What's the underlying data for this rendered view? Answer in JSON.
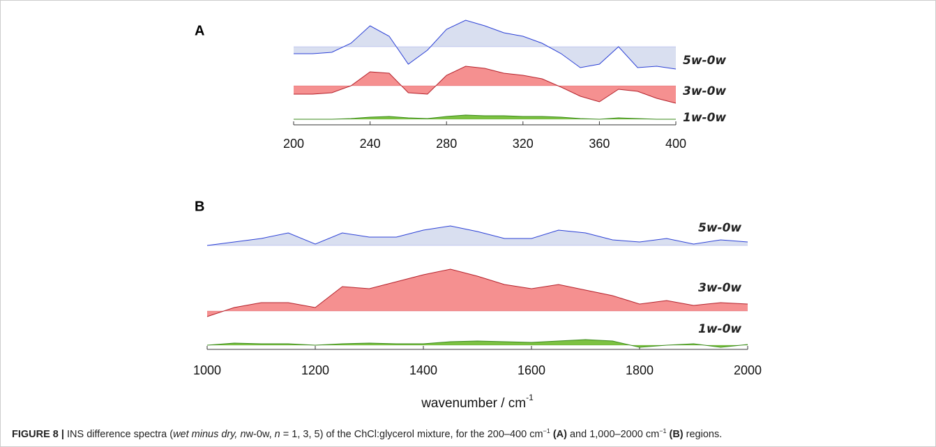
{
  "chart_data": [
    {
      "type": "area",
      "panel_label": "A",
      "x": [
        200,
        210,
        220,
        230,
        240,
        250,
        260,
        270,
        280,
        290,
        300,
        310,
        320,
        330,
        340,
        350,
        360,
        370,
        380,
        390,
        400
      ],
      "xlim": [
        200,
        400
      ],
      "xticks": [
        200,
        240,
        280,
        320,
        360,
        400
      ],
      "series": [
        {
          "name": "5w-0w",
          "color": "#d9dff0",
          "line_color": "#2a3fd6",
          "values": [
            -10,
            -10,
            -8,
            5,
            30,
            15,
            -25,
            -5,
            25,
            38,
            30,
            20,
            15,
            5,
            -10,
            -30,
            -25,
            0,
            -30,
            -28,
            -32
          ]
        },
        {
          "name": "3w-0w",
          "color": "#f59090",
          "line_color": "#b3202a",
          "values": [
            -12,
            -12,
            -10,
            0,
            20,
            18,
            -10,
            -12,
            15,
            28,
            25,
            18,
            15,
            10,
            -2,
            -15,
            -23,
            -5,
            -8,
            -18,
            -25
          ]
        },
        {
          "name": "1w-0w",
          "color": "#7dc242",
          "line_color": "#3a8a1a",
          "values": [
            0,
            0,
            0,
            1,
            3,
            4,
            2,
            1,
            4,
            6,
            5,
            5,
            4,
            4,
            3,
            1,
            0,
            2,
            1,
            0,
            0
          ]
        }
      ]
    },
    {
      "type": "area",
      "panel_label": "B",
      "x": [
        1000,
        1050,
        1100,
        1150,
        1200,
        1250,
        1300,
        1350,
        1400,
        1450,
        1500,
        1550,
        1600,
        1650,
        1700,
        1750,
        1800,
        1850,
        1900,
        1950,
        2000
      ],
      "xlim": [
        1000,
        2000
      ],
      "xticks": [
        1000,
        1200,
        1400,
        1600,
        1800,
        2000
      ],
      "xlabel": "wavenumber / cm",
      "xlabel_sup": "-1",
      "series": [
        {
          "name": "5w-0w",
          "color": "#d9dff0",
          "line_color": "#2a3fd6",
          "values": [
            0,
            5,
            10,
            18,
            2,
            18,
            12,
            12,
            22,
            28,
            20,
            10,
            10,
            22,
            18,
            8,
            5,
            10,
            2,
            8,
            5
          ]
        },
        {
          "name": "3w-0w",
          "color": "#f59090",
          "line_color": "#b3202a",
          "values": [
            -8,
            5,
            12,
            12,
            5,
            35,
            32,
            42,
            52,
            60,
            50,
            38,
            32,
            38,
            30,
            22,
            10,
            15,
            8,
            12,
            10
          ]
        },
        {
          "name": "1w-0w",
          "color": "#7dc242",
          "line_color": "#3a8a1a",
          "values": [
            0,
            3,
            2,
            2,
            0,
            2,
            3,
            2,
            2,
            5,
            6,
            5,
            4,
            6,
            8,
            6,
            -3,
            0,
            2,
            -3,
            1
          ]
        }
      ]
    }
  ],
  "caption": {
    "parts": [
      "FIGURE 8 |",
      " INS difference spectra (",
      "wet minus dry,",
      " ",
      "n",
      "w-0w, ",
      "n",
      " = 1, 3, 5) of the ChCl:glycerol mixture, for the 200–400 cm",
      "−1",
      " ",
      "(A)",
      " and 1,000–2000 cm",
      "−1",
      " ",
      "(B)",
      " regions."
    ]
  }
}
